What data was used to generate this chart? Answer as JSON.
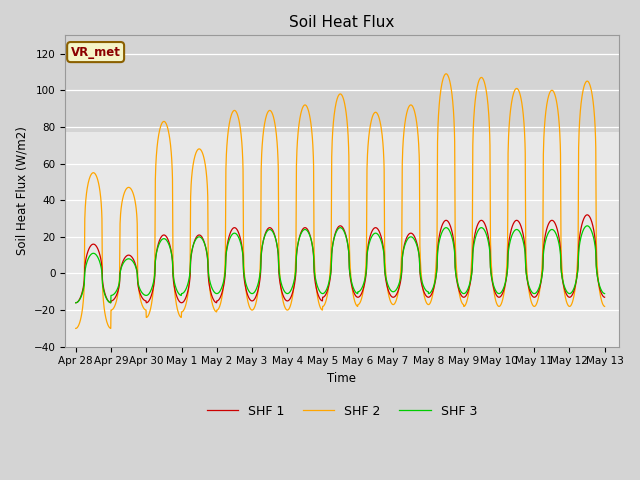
{
  "title": "Soil Heat Flux",
  "ylabel": "Soil Heat Flux (W/m2)",
  "xlabel": "Time",
  "ylim": [
    -40,
    130
  ],
  "yticks": [
    -40,
    -20,
    0,
    20,
    40,
    60,
    80,
    100,
    120
  ],
  "xtick_labels": [
    "Apr 28",
    "Apr 29",
    "Apr 30",
    "May 1",
    "May 2",
    "May 3",
    "May 4",
    "May 5",
    "May 6",
    "May 7",
    "May 8",
    "May 9",
    "May 10",
    "May 11",
    "May 12",
    "May 13"
  ],
  "xtick_positions": [
    0,
    1,
    2,
    3,
    4,
    5,
    6,
    7,
    8,
    9,
    10,
    11,
    12,
    13,
    14,
    15
  ],
  "shf1_color": "#cc0000",
  "shf2_color": "#ffa500",
  "shf3_color": "#00cc00",
  "legend_label1": "SHF 1",
  "legend_label2": "SHF 2",
  "legend_label3": "SHF 3",
  "annotation_text": "VR_met",
  "fig_bg_color": "#d4d4d4",
  "plot_bg_color": "#e8e8e8",
  "band_bg_color": "#d4d4d4",
  "shf2_peaks": [
    55,
    47,
    83,
    68,
    89,
    89,
    92,
    98,
    88,
    92,
    109,
    107,
    101,
    100,
    105
  ],
  "shf1_peaks": [
    16,
    10,
    21,
    21,
    25,
    25,
    25,
    26,
    25,
    22,
    29,
    29,
    29,
    29,
    32
  ],
  "shf3_peaks": [
    11,
    8,
    19,
    20,
    22,
    24,
    24,
    25,
    22,
    20,
    25,
    25,
    24,
    24,
    26
  ],
  "shf2_troughs": [
    -30,
    -20,
    -24,
    -21,
    -20,
    -20,
    -20,
    -18,
    -17,
    -17,
    -17,
    -18,
    -18,
    -18,
    -18
  ],
  "shf1_troughs": [
    -16,
    -15,
    -16,
    -16,
    -15,
    -15,
    -15,
    -13,
    -13,
    -13,
    -13,
    -13,
    -13,
    -13,
    -13
  ],
  "shf3_troughs": [
    -16,
    -12,
    -12,
    -11,
    -11,
    -11,
    -11,
    -11,
    -10,
    -10,
    -11,
    -11,
    -11,
    -11,
    -11
  ],
  "shf2_sharpness": 3.5,
  "shf13_sharpness": 2.0
}
